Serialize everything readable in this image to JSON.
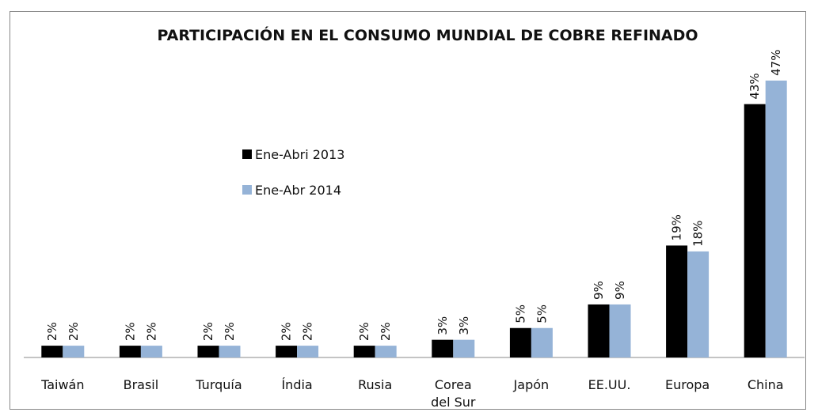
{
  "chart_data": {
    "type": "bar",
    "title": "PARTICIPACIÓN EN EL CONSUMO MUNDIAL DE COBRE REFINADO",
    "categories": [
      "Taiwán",
      "Brasil",
      "Turquía",
      "Índia",
      "Rusia",
      "Corea del Sur",
      "Japón",
      "EE.UU.",
      "Europa",
      "China"
    ],
    "series": [
      {
        "name": "Ene-Abri 2013",
        "color": "#000000",
        "values": [
          2,
          2,
          2,
          2,
          2,
          3,
          5,
          9,
          19,
          43
        ],
        "value_labels": [
          "2%",
          "2%",
          "2%",
          "2%",
          "2%",
          "3%",
          "5%",
          "9%",
          "19%",
          "43%"
        ]
      },
      {
        "name": "Ene-Abr 2014",
        "color": "#95b3d7",
        "values": [
          2,
          2,
          2,
          2,
          2,
          3,
          5,
          9,
          18,
          47
        ],
        "value_labels": [
          "2%",
          "2%",
          "2%",
          "2%",
          "2%",
          "3%",
          "5%",
          "9%",
          "18%",
          "47%"
        ]
      }
    ]
  }
}
